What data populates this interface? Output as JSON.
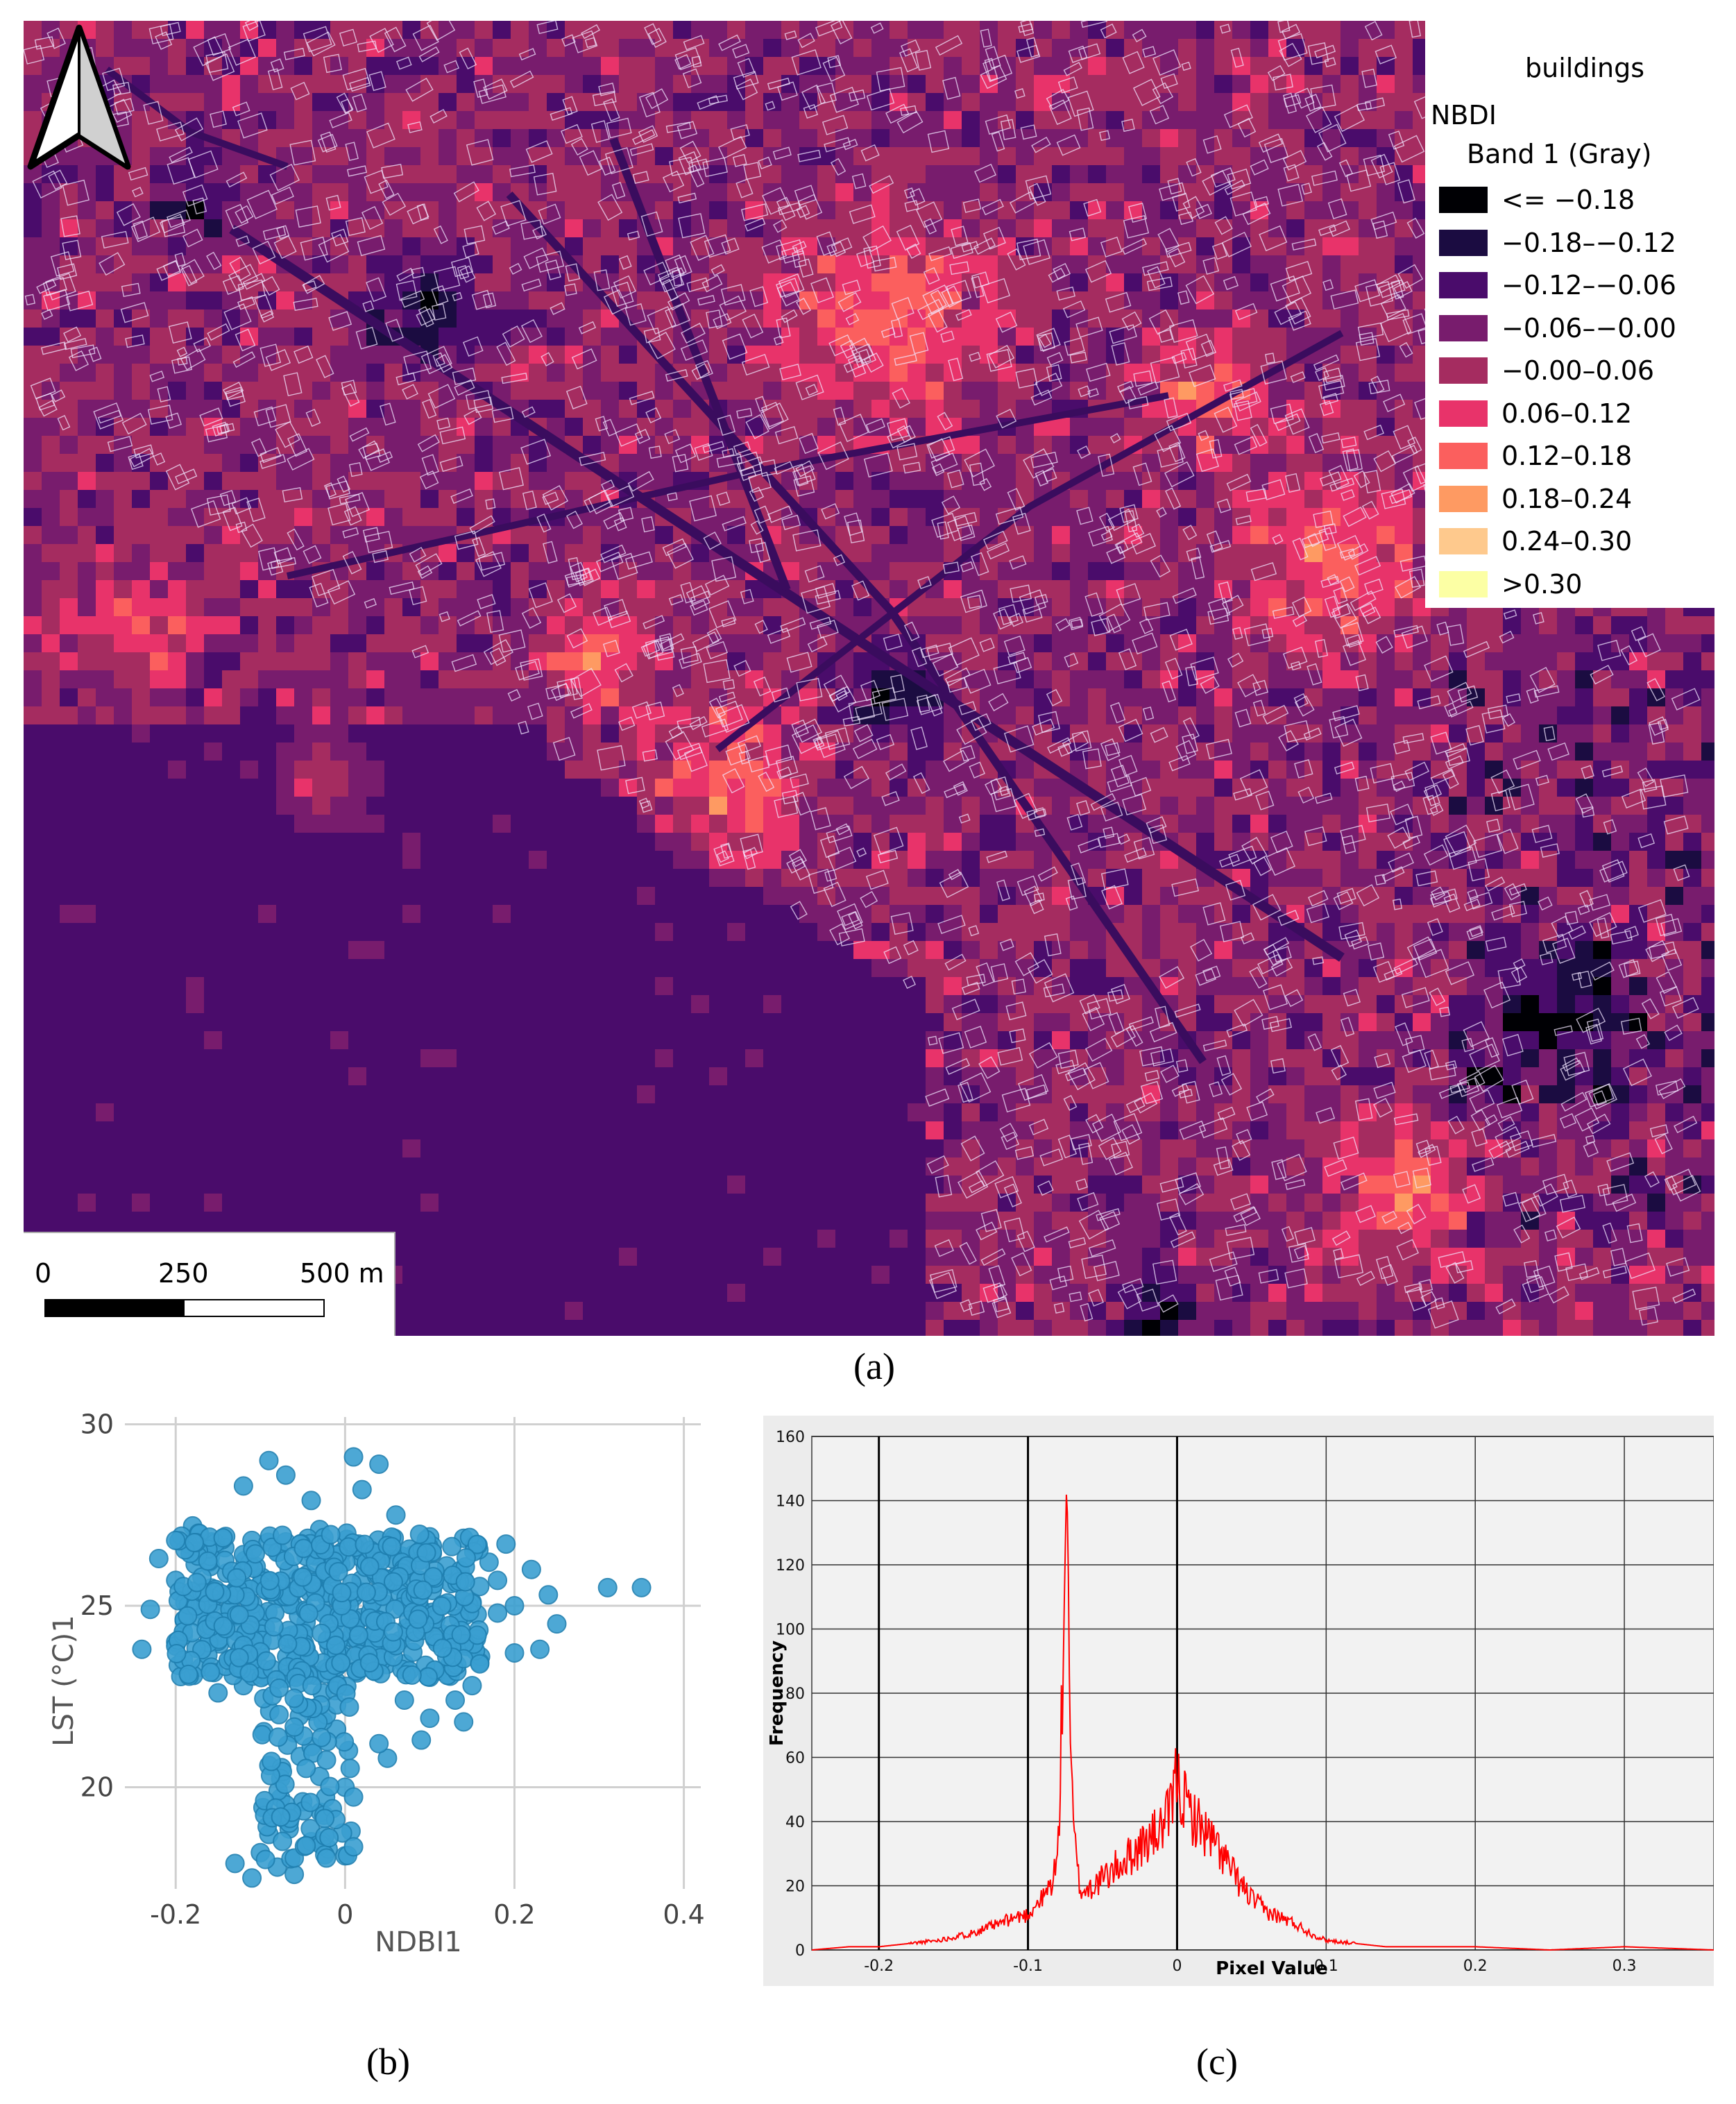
{
  "panel_a": {
    "label": "(a)",
    "legend": {
      "layer_buildings": "buildings",
      "layer_raster": "NBDI",
      "band": "Band 1 (Gray)",
      "classes": [
        {
          "label": "<= −0.18",
          "color": "#000004"
        },
        {
          "label": "−0.18–−0.12",
          "color": "#1b0c41"
        },
        {
          "label": "−0.12–−0.06",
          "color": "#4a0c6b"
        },
        {
          "label": "−0.06–−0.00",
          "color": "#781c6d"
        },
        {
          "label": "−0.00–0.06",
          "color": "#a52c60"
        },
        {
          "label": "0.06–0.12",
          "color": "#e8336a"
        },
        {
          "label": "0.12–0.18",
          "color": "#fb5f5e"
        },
        {
          "label": "0.18–0.24",
          "color": "#fe9a62"
        },
        {
          "label": "0.24–0.30",
          "color": "#fec98d"
        },
        {
          "label": ">0.30",
          "color": "#fcffa4"
        }
      ]
    },
    "scalebar": {
      "labels": [
        "0",
        "250",
        "500 m"
      ]
    },
    "north_arrow_icon": "north-arrow-icon"
  },
  "panel_b": {
    "label": "(b)",
    "chart_data": {
      "type": "scatter",
      "xlabel": "NDBI1",
      "ylabel": "LST (°C)1",
      "xlim": [
        -0.26,
        0.42
      ],
      "ylim": [
        17.2,
        30.2
      ],
      "x_ticks": [
        "-0.2",
        "0",
        "0.2",
        "0.4"
      ],
      "y_ticks": [
        "20",
        "25",
        "30"
      ],
      "x_tick_values": [
        -0.2,
        0,
        0.2,
        0.4
      ],
      "y_tick_values": [
        20,
        25,
        30
      ],
      "grid": true,
      "marker_color": "#3a9fd1",
      "points": [
        [
          0.35,
          25.5
        ],
        [
          0.31,
          25.5
        ],
        [
          0.22,
          26.0
        ],
        [
          0.24,
          25.3
        ],
        [
          0.25,
          24.5
        ],
        [
          0.23,
          23.8
        ],
        [
          0.2,
          23.7
        ],
        [
          0.19,
          26.7
        ],
        [
          0.18,
          24.8
        ],
        [
          0.15,
          22.8
        ],
        [
          0.13,
          22.4
        ],
        [
          0.1,
          21.9
        ],
        [
          0.09,
          21.3
        ],
        [
          0.05,
          20.8
        ],
        [
          0.04,
          21.2
        ],
        [
          0.0,
          20.0
        ],
        [
          -0.03,
          20.3
        ],
        [
          -0.05,
          19.6
        ],
        [
          -0.07,
          19.1
        ],
        [
          -0.09,
          18.7
        ],
        [
          -0.1,
          18.2
        ],
        [
          -0.08,
          17.8
        ],
        [
          -0.13,
          17.9
        ],
        [
          -0.11,
          17.5
        ],
        [
          -0.06,
          17.6
        ],
        [
          -0.02,
          18.3
        ],
        [
          -0.04,
          18.5
        ],
        [
          -0.18,
          27.2
        ],
        [
          -0.12,
          28.3
        ],
        [
          -0.09,
          29.0
        ],
        [
          -0.07,
          28.6
        ],
        [
          -0.04,
          27.9
        ],
        [
          0.01,
          29.1
        ],
        [
          0.04,
          28.9
        ],
        [
          0.02,
          28.2
        ],
        [
          -0.22,
          26.3
        ],
        [
          -0.24,
          23.8
        ],
        [
          -0.23,
          24.9
        ],
        [
          -0.2,
          25.7
        ],
        [
          -0.17,
          23.3
        ],
        [
          -0.15,
          22.6
        ],
        [
          -0.16,
          24.1
        ],
        [
          -0.19,
          24.6
        ],
        [
          -0.14,
          25.9
        ],
        [
          -0.11,
          26.8
        ],
        [
          -0.08,
          25.2
        ],
        [
          -0.05,
          24.3
        ],
        [
          -0.02,
          25.5
        ],
        [
          0.02,
          26.3
        ],
        [
          0.06,
          25.8
        ],
        [
          0.09,
          24.9
        ],
        [
          0.12,
          26.1
        ],
        [
          0.15,
          25.1
        ],
        [
          0.13,
          24.2
        ],
        [
          0.16,
          23.6
        ],
        [
          0.07,
          23.4
        ],
        [
          0.03,
          23.9
        ],
        [
          -0.01,
          22.9
        ],
        [
          -0.04,
          22.1
        ],
        [
          -0.06,
          21.5
        ],
        [
          -0.09,
          20.6
        ],
        [
          -0.03,
          27.1
        ],
        [
          0.06,
          27.5
        ],
        [
          0.1,
          26.9
        ],
        [
          -0.13,
          24.7
        ],
        [
          -0.1,
          23.9
        ],
        [
          -0.07,
          23.1
        ],
        [
          0.0,
          24.7
        ],
        [
          0.04,
          24.6
        ],
        [
          0.08,
          26.4
        ],
        [
          -0.16,
          26.2
        ],
        [
          0.18,
          25.7
        ],
        [
          0.11,
          23.2
        ],
        [
          0.14,
          21.8
        ],
        [
          0.07,
          22.4
        ],
        [
          -0.01,
          21.6
        ],
        [
          -0.12,
          22.8
        ],
        [
          -0.2,
          24.0
        ],
        [
          0.2,
          25.0
        ],
        [
          0.17,
          26.2
        ]
      ]
    }
  },
  "panel_c": {
    "label": "(c)",
    "chart_data": {
      "type": "line",
      "xlabel": "Pixel Value",
      "ylabel": "Frequency",
      "xlim": [
        -0.245,
        0.36
      ],
      "ylim": [
        0,
        160
      ],
      "x_ticks": [
        "-0.2",
        "-0.1",
        "0",
        "0.1",
        "0.2",
        "0.3"
      ],
      "x_tick_values": [
        -0.2,
        -0.1,
        0,
        0.1,
        0.2,
        0.3
      ],
      "y_ticks": [
        "0",
        "20",
        "40",
        "60",
        "80",
        "100",
        "120",
        "140",
        "160"
      ],
      "y_tick_values": [
        0,
        20,
        40,
        60,
        80,
        100,
        120,
        140,
        160
      ],
      "grid": true,
      "series": [
        {
          "color": "#ff0000",
          "x": [
            -0.245,
            -0.22,
            -0.2,
            -0.18,
            -0.16,
            -0.14,
            -0.12,
            -0.11,
            -0.1,
            -0.095,
            -0.09,
            -0.085,
            -0.08,
            -0.078,
            -0.076,
            -0.074,
            -0.073,
            -0.072,
            -0.071,
            -0.07,
            -0.068,
            -0.066,
            -0.064,
            -0.06,
            -0.05,
            -0.04,
            -0.03,
            -0.02,
            -0.01,
            -0.005,
            0,
            0.003,
            0.01,
            0.02,
            0.03,
            0.04,
            0.05,
            0.06,
            0.07,
            0.08,
            0.09,
            0.1,
            0.12,
            0.14,
            0.16,
            0.2,
            0.25,
            0.3,
            0.36
          ],
          "y": [
            0,
            1,
            1,
            2,
            3,
            5,
            8,
            10,
            11,
            14,
            16,
            20,
            28,
            60,
            100,
            148,
            120,
            80,
            60,
            40,
            30,
            22,
            18,
            19,
            22,
            26,
            30,
            34,
            38,
            42,
            55,
            48,
            42,
            36,
            30,
            22,
            16,
            12,
            10,
            8,
            5,
            3,
            2,
            1,
            1,
            1,
            0,
            1,
            0
          ]
        }
      ]
    }
  }
}
